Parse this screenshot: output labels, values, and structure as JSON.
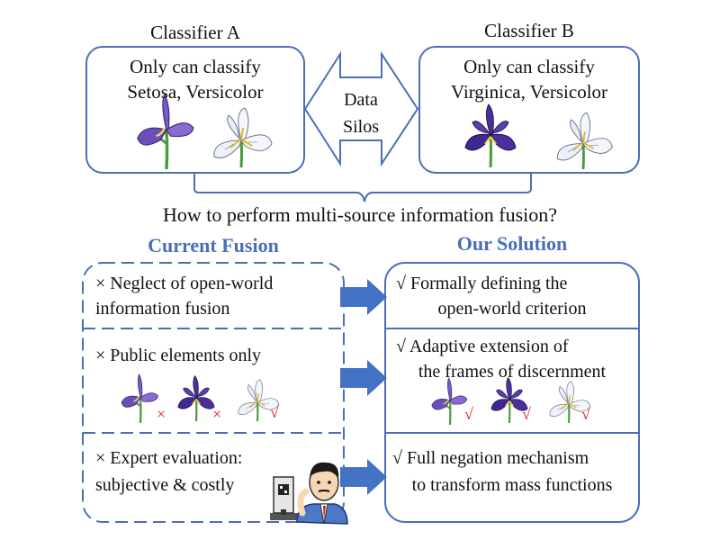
{
  "top": {
    "classifier_a": {
      "title": "Classifier A",
      "line1": "Only can classify",
      "line2": "Setosa, Versicolor"
    },
    "classifier_b": {
      "title": "Classifier B",
      "line1": "Only can classify",
      "line2": "Virginica, Versicolor"
    },
    "silos": {
      "line1": "Data",
      "line2": "Silos"
    }
  },
  "question": "How to perform multi-source information fusion?",
  "current": {
    "heading": "Current Fusion",
    "items": [
      {
        "mark": "×",
        "line1": "Neglect of open-world",
        "line2": "information fusion"
      },
      {
        "mark": "×",
        "line1": "Public elements only",
        "line2": ""
      },
      {
        "mark": "×",
        "line1": "Expert evaluation:",
        "line2": "subjective & costly"
      }
    ],
    "flower_marks": [
      "×",
      "×",
      "√"
    ]
  },
  "solution": {
    "heading": "Our Solution",
    "items": [
      {
        "mark": "√",
        "line1": "Formally defining the",
        "line2": "open-world criterion"
      },
      {
        "mark": "√",
        "line1": "Adaptive extension of",
        "line2": "the frames of discernment"
      },
      {
        "mark": "√",
        "line1": "Full negation mechanism",
        "line2": "to transform mass functions"
      }
    ],
    "flower_marks": [
      "√",
      "√",
      "√"
    ]
  },
  "colors": {
    "border": "#4a6fb8",
    "arrow": "#4472c4",
    "heading": "#4a6fb8",
    "cross": "#e02020",
    "check": "#e02020",
    "iris_purple": "#6a4fb8",
    "iris_white": "#f4f6fb",
    "stem": "#4c9a3a"
  },
  "icons": {
    "flower_a1": "iris-purple-icon",
    "flower_a2": "iris-white-icon",
    "flower_b1": "iris-dark-purple-icon",
    "flower_b2": "iris-white-icon",
    "expert": "expert-person-icon"
  }
}
